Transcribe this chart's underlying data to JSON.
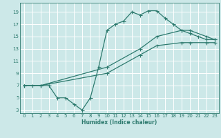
{
  "xlabel": "Humidex (Indice chaleur)",
  "bg_color": "#cce8e8",
  "grid_color": "#ffffff",
  "line_color": "#2d7a6e",
  "xlim": [
    -0.5,
    23.5
  ],
  "ylim": [
    2.5,
    20.5
  ],
  "xticks": [
    0,
    1,
    2,
    3,
    4,
    5,
    6,
    7,
    8,
    9,
    10,
    11,
    12,
    13,
    14,
    15,
    16,
    17,
    18,
    19,
    20,
    21,
    22,
    23
  ],
  "yticks": [
    3,
    5,
    7,
    9,
    11,
    13,
    15,
    17,
    19
  ],
  "line1_x": [
    0,
    1,
    2,
    3,
    4,
    5,
    6,
    7,
    8,
    9,
    10,
    11,
    12,
    13,
    14,
    15,
    16,
    17,
    18,
    19,
    20,
    21,
    22,
    23
  ],
  "line1_y": [
    7,
    7,
    7,
    7,
    5,
    5,
    4,
    3,
    5,
    10,
    16,
    17,
    17.5,
    19,
    18.5,
    19.2,
    19.2,
    18,
    17,
    16,
    15.5,
    15,
    14.5,
    14.5
  ],
  "line2_x": [
    0,
    2,
    10,
    14,
    16,
    19,
    20,
    22,
    23
  ],
  "line2_y": [
    7,
    7,
    10,
    13,
    15,
    16,
    16,
    15,
    14.5
  ],
  "line3_x": [
    0,
    2,
    10,
    14,
    16,
    19,
    20,
    22,
    23
  ],
  "line3_y": [
    7,
    7,
    9,
    12,
    13.5,
    14,
    14,
    14,
    14
  ]
}
